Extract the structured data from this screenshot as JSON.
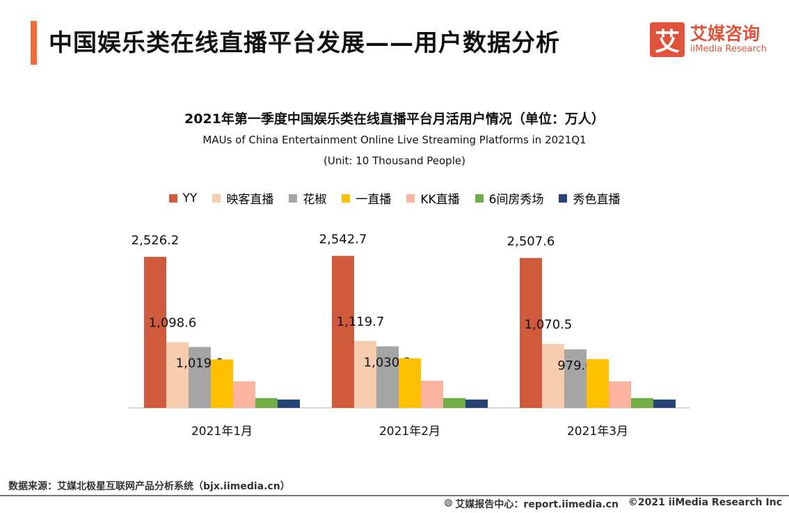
{
  "header": {
    "title": "中国娱乐类在线直播平台发展——用户数据分析"
  },
  "logo": {
    "mark": "艾",
    "cn": "艾媒咨询",
    "en": "iiMedia Research"
  },
  "chart_data": {
    "type": "bar",
    "title": "2021年第一季度中国娱乐类在线直播平台月活用户情况（单位：万人）",
    "subtitle": "MAUs of China Entertainment Online Live Streaming Platforms in 2021Q1",
    "unit": "(Unit: 10 Thousand People)",
    "categories": [
      "2021年1月",
      "2021年2月",
      "2021年3月"
    ],
    "legend_position": "top",
    "grid": false,
    "ylim": [
      0,
      2600
    ],
    "series": [
      {
        "name": "YY",
        "color": "#d05a3c",
        "values": [
          2526.2,
          2542.7,
          2507.6
        ],
        "labels": [
          "2,526.2",
          "2,542.7",
          "2,507.6"
        ]
      },
      {
        "name": "映客直播",
        "color": "#f7cbad",
        "values": [
          1098.6,
          1119.7,
          1070.5
        ],
        "labels": [
          "1,098.6",
          "1,119.7",
          "1,070.5"
        ]
      },
      {
        "name": "花椒",
        "color": "#a5a5a5",
        "values": [
          1019.0,
          1030.2,
          979.0
        ],
        "labels": [
          "1,019.0",
          "1,030.2",
          "979.0"
        ]
      },
      {
        "name": "一直播",
        "color": "#ffc000",
        "values": [
          810,
          830,
          815
        ]
      },
      {
        "name": "KK直播",
        "color": "#fbb4a0",
        "values": [
          445,
          455,
          445
        ]
      },
      {
        "name": "6间房秀场",
        "color": "#70ad47",
        "values": [
          165,
          165,
          165
        ]
      },
      {
        "name": "秀色直播",
        "color": "#264478",
        "values": [
          140,
          140,
          140
        ]
      }
    ]
  },
  "footer": {
    "source": "数据来源：艾媒北极星互联网产品分析系统（bjx.iimedia.cn）",
    "report": "艾媒报告中心：report.iimedia.cn",
    "copyright": "©2021  iiMedia Research  Inc"
  }
}
